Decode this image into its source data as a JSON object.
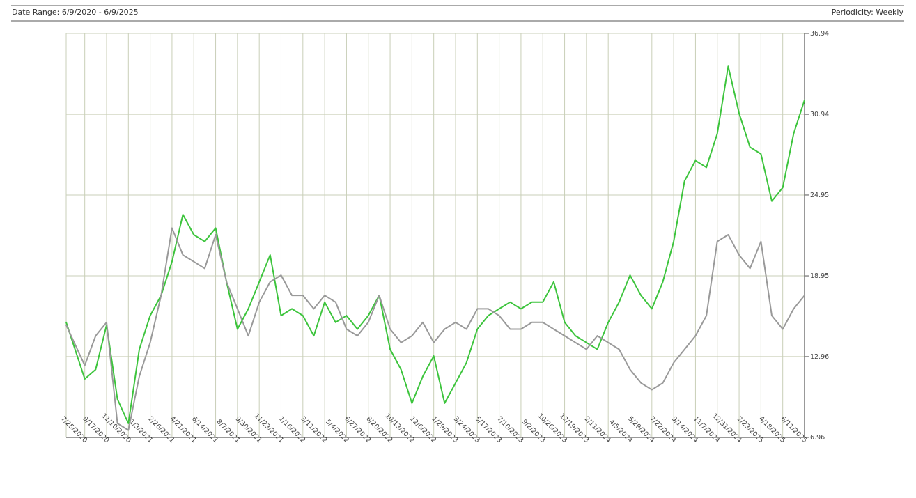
{
  "header": {
    "date_range": "Date Range: 6/9/2020 - 6/9/2025",
    "periodicity": "Periodicity: Weekly"
  },
  "chart_data": {
    "type": "line",
    "ylim": [
      6.96,
      36.94
    ],
    "y_ticks": [
      6.96,
      12.96,
      18.95,
      24.95,
      30.94,
      36.94
    ],
    "x_ticks": [
      "7/25/2020",
      "9/17/2020",
      "11/10/2020",
      "1/3/2021",
      "2/26/2021",
      "4/21/2021",
      "6/14/2021",
      "8/7/2021",
      "9/30/2021",
      "11/23/2021",
      "1/16/2022",
      "3/11/2022",
      "5/4/2022",
      "6/27/2022",
      "8/20/2022",
      "10/13/2022",
      "12/6/2022",
      "1/29/2023",
      "3/24/2023",
      "5/17/2023",
      "7/10/2023",
      "9/2/2023",
      "10/26/2023",
      "12/19/2023",
      "2/11/2024",
      "4/5/2024",
      "5/29/2024",
      "7/22/2024",
      "9/14/2024",
      "11/7/2024",
      "12/31/2024",
      "2/23/2025",
      "4/18/2025",
      "6/11/2025"
    ],
    "x_start": "6/9/2020",
    "x_end": "6/11/2025",
    "grid": true,
    "series": [
      {
        "color": "#3cc43c",
        "x": [
          "6/9/2020",
          "7/25/2020",
          "8/21/2020",
          "9/17/2020",
          "10/14/2020",
          "11/10/2020",
          "12/7/2020",
          "1/3/2021",
          "1/30/2021",
          "2/26/2021",
          "3/25/2021",
          "4/21/2021",
          "5/18/2021",
          "6/14/2021",
          "7/11/2021",
          "8/7/2021",
          "9/3/2021",
          "9/30/2021",
          "10/27/2021",
          "11/23/2021",
          "12/20/2021",
          "1/16/2022",
          "2/12/2022",
          "3/11/2022",
          "4/7/2022",
          "5/4/2022",
          "5/31/2022",
          "6/27/2022",
          "7/24/2022",
          "8/20/2022",
          "9/16/2022",
          "10/13/2022",
          "11/9/2022",
          "12/6/2022",
          "1/2/2023",
          "1/29/2023",
          "2/25/2023",
          "3/24/2023",
          "4/20/2023",
          "5/17/2023",
          "6/13/2023",
          "7/10/2023",
          "8/6/2023",
          "9/2/2023",
          "9/29/2023",
          "10/26/2023",
          "11/22/2023",
          "12/19/2023",
          "1/15/2024",
          "2/11/2024",
          "3/9/2024",
          "4/5/2024",
          "5/2/2024",
          "5/29/2024",
          "6/25/2024",
          "7/22/2024",
          "8/18/2024",
          "9/14/2024",
          "10/11/2024",
          "11/7/2024",
          "12/4/2024",
          "12/31/2024",
          "1/27/2025",
          "2/23/2025",
          "3/22/2025",
          "4/18/2025",
          "5/15/2025",
          "6/11/2025"
        ],
        "y": [
          15.5,
          11.3,
          12.0,
          15.3,
          9.8,
          8.0,
          13.5,
          16.0,
          17.5,
          20.0,
          23.5,
          22.0,
          21.5,
          22.5,
          18.5,
          15.0,
          16.5,
          18.5,
          20.5,
          16.0,
          16.5,
          16.0,
          14.5,
          17.0,
          15.5,
          16.0,
          15.0,
          16.0,
          17.5,
          13.5,
          12.0,
          9.5,
          11.5,
          13.0,
          9.5,
          11.0,
          12.5,
          15.0,
          16.0,
          16.5,
          17.0,
          16.5,
          17.0,
          17.0,
          18.5,
          15.5,
          14.5,
          14.0,
          13.5,
          15.5,
          17.0,
          19.0,
          17.5,
          16.5,
          18.5,
          21.5,
          26.0,
          27.5,
          27.0,
          29.5,
          34.5,
          31.0,
          28.5,
          28.0,
          24.5,
          25.5,
          29.5,
          32.0
        ]
      },
      {
        "color": "#999999",
        "x": [
          "6/9/2020",
          "7/25/2020",
          "8/21/2020",
          "9/17/2020",
          "10/14/2020",
          "11/10/2020",
          "12/7/2020",
          "1/3/2021",
          "1/30/2021",
          "2/26/2021",
          "3/25/2021",
          "4/21/2021",
          "5/18/2021",
          "6/14/2021",
          "7/11/2021",
          "8/7/2021",
          "9/3/2021",
          "9/30/2021",
          "10/27/2021",
          "11/23/2021",
          "12/20/2021",
          "1/16/2022",
          "2/12/2022",
          "3/11/2022",
          "4/7/2022",
          "5/4/2022",
          "5/31/2022",
          "6/27/2022",
          "7/24/2022",
          "8/20/2022",
          "9/16/2022",
          "10/13/2022",
          "11/9/2022",
          "12/6/2022",
          "1/2/2023",
          "1/29/2023",
          "2/25/2023",
          "3/24/2023",
          "4/20/2023",
          "5/17/2023",
          "6/13/2023",
          "7/10/2023",
          "8/6/2023",
          "9/2/2023",
          "9/29/2023",
          "10/26/2023",
          "11/22/2023",
          "12/19/2023",
          "1/15/2024",
          "2/11/2024",
          "3/9/2024",
          "4/5/2024",
          "5/2/2024",
          "5/29/2024",
          "6/25/2024",
          "7/22/2024",
          "8/18/2024",
          "9/14/2024",
          "10/11/2024",
          "11/7/2024",
          "12/4/2024",
          "12/31/2024",
          "1/27/2025",
          "2/23/2025",
          "3/22/2025",
          "4/18/2025",
          "5/15/2025",
          "6/11/2025"
        ],
        "y": [
          15.3,
          12.3,
          14.5,
          15.5,
          8.0,
          7.5,
          11.5,
          14.0,
          17.5,
          22.5,
          20.5,
          20.0,
          19.5,
          22.0,
          18.5,
          16.5,
          14.5,
          17.0,
          18.5,
          19.0,
          17.5,
          17.5,
          16.5,
          17.5,
          17.0,
          15.0,
          14.5,
          15.5,
          17.5,
          15.0,
          14.0,
          14.5,
          15.5,
          14.0,
          15.0,
          15.5,
          15.0,
          16.5,
          16.5,
          16.0,
          15.0,
          15.0,
          15.5,
          15.5,
          15.0,
          14.5,
          14.0,
          13.5,
          14.5,
          14.0,
          13.5,
          12.0,
          11.0,
          10.5,
          11.0,
          12.5,
          13.5,
          14.5,
          16.0,
          21.5,
          22.0,
          20.5,
          19.5,
          21.5,
          16.0,
          15.0,
          16.5,
          17.5
        ]
      }
    ]
  }
}
